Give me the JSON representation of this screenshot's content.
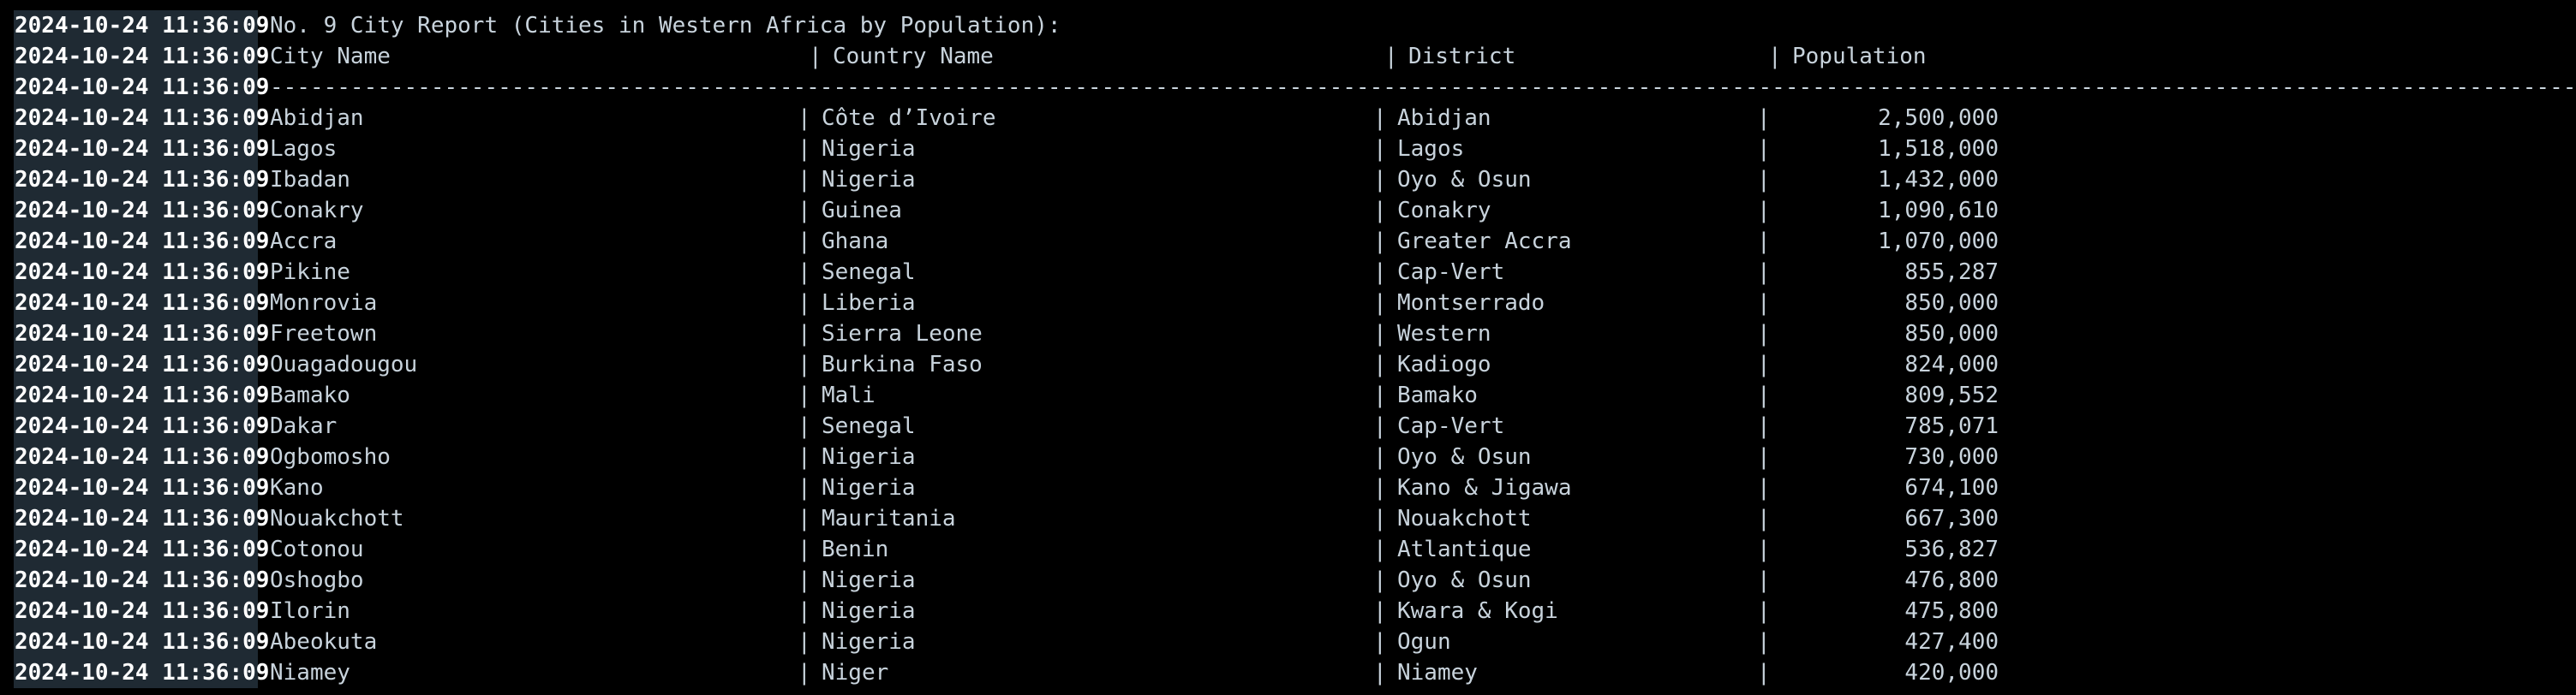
{
  "log": {
    "timestamp": "2024-10-24 11:36:09",
    "title": "No. 9 City Report (Cities in Western Africa by Population):",
    "separator": "|",
    "dash_line": "----------------------------------------------------------------------------------------------------------------------------------------------------------------------------",
    "headers": {
      "city": "City Name",
      "country": "Country Name",
      "district": "District",
      "population": "Population"
    },
    "rows": [
      {
        "city": "Abidjan",
        "country": "Côte d’Ivoire",
        "district": "Abidjan",
        "population": "2,500,000"
      },
      {
        "city": "Lagos",
        "country": "Nigeria",
        "district": "Lagos",
        "population": "1,518,000"
      },
      {
        "city": "Ibadan",
        "country": "Nigeria",
        "district": "Oyo & Osun",
        "population": "1,432,000"
      },
      {
        "city": "Conakry",
        "country": "Guinea",
        "district": "Conakry",
        "population": "1,090,610"
      },
      {
        "city": "Accra",
        "country": "Ghana",
        "district": "Greater Accra",
        "population": "1,070,000"
      },
      {
        "city": "Pikine",
        "country": "Senegal",
        "district": "Cap-Vert",
        "population": "855,287"
      },
      {
        "city": "Monrovia",
        "country": "Liberia",
        "district": "Montserrado",
        "population": "850,000"
      },
      {
        "city": "Freetown",
        "country": "Sierra Leone",
        "district": "Western",
        "population": "850,000"
      },
      {
        "city": "Ouagadougou",
        "country": "Burkina Faso",
        "district": "Kadiogo",
        "population": "824,000"
      },
      {
        "city": "Bamako",
        "country": "Mali",
        "district": "Bamako",
        "population": "809,552"
      },
      {
        "city": "Dakar",
        "country": "Senegal",
        "district": "Cap-Vert",
        "population": "785,071"
      },
      {
        "city": "Ogbomosho",
        "country": "Nigeria",
        "district": "Oyo & Osun",
        "population": "730,000"
      },
      {
        "city": "Kano",
        "country": "Nigeria",
        "district": "Kano & Jigawa",
        "population": "674,100"
      },
      {
        "city": "Nouakchott",
        "country": "Mauritania",
        "district": "Nouakchott",
        "population": "667,300"
      },
      {
        "city": "Cotonou",
        "country": "Benin",
        "district": "Atlantique",
        "population": "536,827"
      },
      {
        "city": "Oshogbo",
        "country": "Nigeria",
        "district": "Oyo & Osun",
        "population": "476,800"
      },
      {
        "city": "Ilorin",
        "country": "Nigeria",
        "district": "Kwara & Kogi",
        "population": "475,800"
      },
      {
        "city": "Abeokuta",
        "country": "Nigeria",
        "district": "Ogun",
        "population": "427,400"
      },
      {
        "city": "Niamey",
        "country": "Niger",
        "district": "Niamey",
        "population": "420,000"
      }
    ]
  }
}
